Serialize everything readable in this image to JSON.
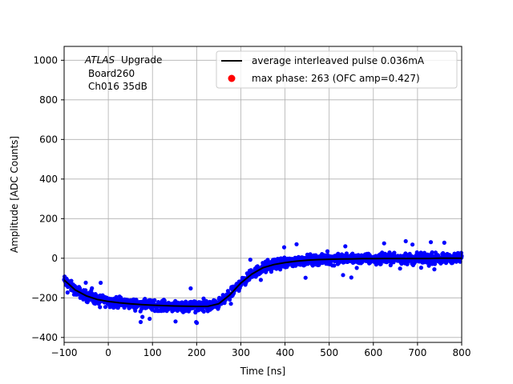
{
  "chart_data": {
    "type": "scatter",
    "xlabel": "Time [ns]",
    "ylabel": "Amplitude [ADC Counts]",
    "xlim": [
      -100,
      800
    ],
    "ylim": [
      -425,
      1070
    ],
    "xticks": [
      -100,
      0,
      100,
      200,
      300,
      400,
      500,
      600,
      700,
      800
    ],
    "xtick_labels": [
      "−100",
      "0",
      "100",
      "200",
      "300",
      "400",
      "500",
      "600",
      "700",
      "800"
    ],
    "yticks": [
      -400,
      -200,
      0,
      200,
      400,
      600,
      800,
      1000
    ],
    "ytick_labels": [
      "−400",
      "−200",
      "0",
      "200",
      "400",
      "600",
      "800",
      "1000"
    ],
    "grid": true,
    "annotation": {
      "experiment": "ATLAS",
      "experiment_suffix": "Upgrade",
      "line2": "Board260",
      "line3": "Ch016 35dB"
    },
    "legend": {
      "placement": "top-right",
      "entries": [
        {
          "label": "average interleaved pulse 0.036mA",
          "marker": "line",
          "color": "#000000"
        },
        {
          "label": "max phase: 263 (OFC amp=0.427)",
          "marker": "dot",
          "color": "#ff0000"
        }
      ]
    },
    "series": [
      {
        "kind": "line",
        "color": "#000000",
        "x": [
          -100,
          -75,
          -50,
          -25,
          0,
          25,
          50,
          75,
          100,
          125,
          150,
          175,
          200,
          225,
          250,
          275,
          300,
          325,
          350,
          375,
          400,
          425,
          450,
          475,
          500,
          525,
          550,
          575,
          600,
          625,
          650,
          675,
          700,
          725,
          750,
          775,
          800
        ],
        "y": [
          -110,
          -160,
          -190,
          -208,
          -218,
          -225,
          -230,
          -234,
          -237,
          -239,
          -241,
          -242,
          -243,
          -243,
          -230,
          -185,
          -125,
          -80,
          -48,
          -32,
          -22,
          -15,
          -10,
          -7,
          -5,
          -4,
          -3,
          -2,
          -2,
          -1,
          -1,
          -1,
          -1,
          -1,
          0,
          0,
          0
        ]
      },
      {
        "kind": "points",
        "color": "#0000ff",
        "spread": 38,
        "outlier_max": 95
      }
    ]
  }
}
